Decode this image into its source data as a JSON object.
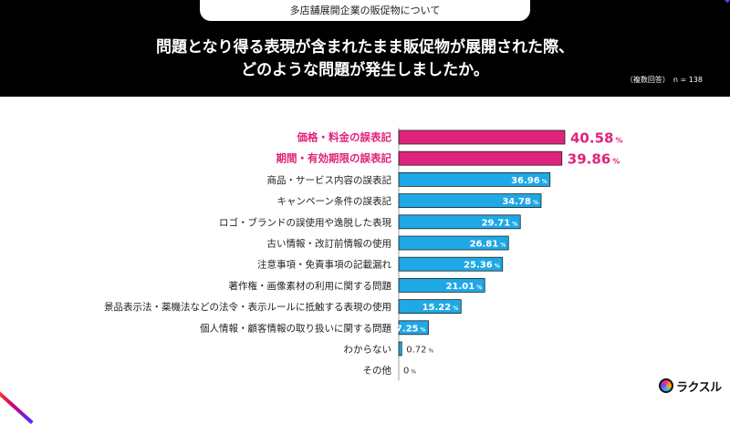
{
  "header": {
    "subtitle": "多店舗展開企業の販促物について",
    "question_line1": "問題となり得る表現が含まれたまま販促物が展開された際、",
    "question_line2": "どのような問題が発生しましたか。",
    "note": "（複数回答）　n = 138"
  },
  "brand": {
    "logo_text": "ラクスル"
  },
  "colors": {
    "highlight": "#e0237a",
    "bar": "#1ea8e6",
    "bar_border": "#222222"
  },
  "chart_data": {
    "type": "bar",
    "orientation": "horizontal",
    "unit": "%",
    "xlim": [
      0,
      40.58
    ],
    "categories": [
      "価格・料金の誤表記",
      "期間・有効期限の誤表記",
      "商品・サービス内容の誤表記",
      "キャンペーン条件の誤表記",
      "ロゴ・ブランドの誤使用や逸脱した表現",
      "古い情報・改訂前情報の使用",
      "注意事項・免責事項の記載漏れ",
      "著作権・画像素材の利用に関する問題",
      "景品表示法・薬機法などの法令・表示ルールに抵触する表現の使用",
      "個人情報・顧客情報の取り扱いに関する問題",
      "わからない",
      "その他"
    ],
    "values": [
      40.58,
      39.86,
      36.96,
      34.78,
      29.71,
      26.81,
      25.36,
      21.01,
      15.22,
      7.25,
      0.72,
      0
    ],
    "highlighted": [
      0,
      1
    ]
  }
}
